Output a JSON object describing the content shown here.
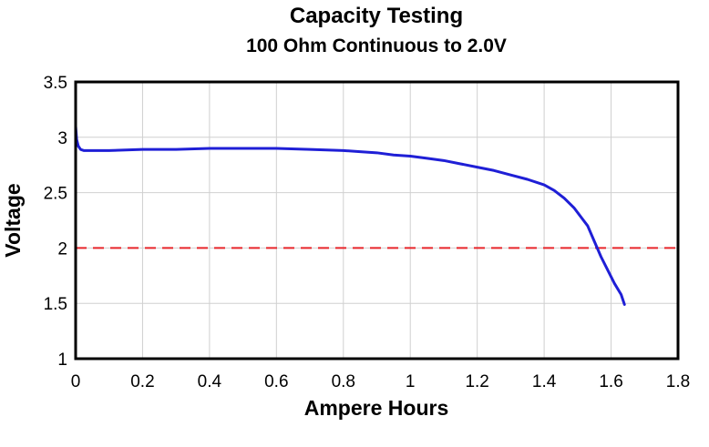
{
  "chart_data": {
    "type": "line",
    "title": "Capacity Testing",
    "subtitle": "100 Ohm Continuous to 2.0V",
    "xlabel": "Ampere Hours",
    "ylabel": "Voltage",
    "xlim": [
      0,
      1.8
    ],
    "ylim": [
      1,
      3.5
    ],
    "xticks": [
      "0",
      "0.2",
      "0.4",
      "0.6",
      "0.8",
      "1",
      "1.2",
      "1.4",
      "1.6",
      "1.8"
    ],
    "yticks": [
      "1",
      "1.5",
      "2",
      "2.5",
      "3",
      "3.5"
    ],
    "grid": true,
    "series": [
      {
        "color": "#1f1fd6",
        "x": [
          0,
          0.003,
          0.008,
          0.015,
          0.025,
          0.05,
          0.1,
          0.2,
          0.3,
          0.4,
          0.5,
          0.6,
          0.7,
          0.8,
          0.85,
          0.9,
          0.95,
          1.0,
          1.05,
          1.1,
          1.15,
          1.2,
          1.25,
          1.3,
          1.35,
          1.4,
          1.43,
          1.46,
          1.49,
          1.51,
          1.53,
          1.55,
          1.57,
          1.59,
          1.61,
          1.63,
          1.64
        ],
        "y": [
          3.1,
          2.98,
          2.92,
          2.89,
          2.88,
          2.88,
          2.88,
          2.89,
          2.89,
          2.9,
          2.9,
          2.9,
          2.89,
          2.88,
          2.87,
          2.86,
          2.84,
          2.83,
          2.81,
          2.79,
          2.76,
          2.73,
          2.7,
          2.66,
          2.62,
          2.57,
          2.52,
          2.45,
          2.36,
          2.28,
          2.2,
          2.06,
          1.92,
          1.8,
          1.68,
          1.58,
          1.49
        ]
      }
    ],
    "reference_lines": [
      {
        "y": 2.0,
        "color": "#e8262b",
        "style": "dashed"
      }
    ]
  }
}
